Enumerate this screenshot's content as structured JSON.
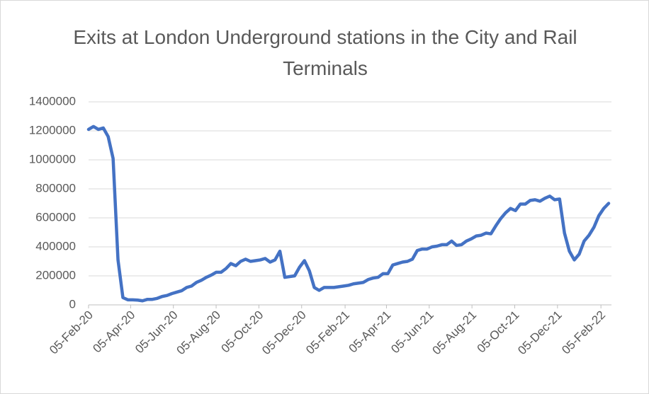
{
  "chart_data": {
    "type": "line",
    "title": "Exits at London Underground stations in the City and Rail Terminals",
    "x": [
      "2020-02-05",
      "2020-02-12",
      "2020-02-19",
      "2020-02-26",
      "2020-03-04",
      "2020-03-11",
      "2020-03-18",
      "2020-03-25",
      "2020-04-01",
      "2020-04-08",
      "2020-04-15",
      "2020-04-22",
      "2020-04-29",
      "2020-05-06",
      "2020-05-13",
      "2020-05-20",
      "2020-05-27",
      "2020-06-03",
      "2020-06-10",
      "2020-06-17",
      "2020-06-24",
      "2020-07-01",
      "2020-07-08",
      "2020-07-15",
      "2020-07-22",
      "2020-07-29",
      "2020-08-05",
      "2020-08-12",
      "2020-08-19",
      "2020-08-26",
      "2020-09-02",
      "2020-09-09",
      "2020-09-16",
      "2020-09-23",
      "2020-09-30",
      "2020-10-07",
      "2020-10-14",
      "2020-10-21",
      "2020-10-28",
      "2020-11-04",
      "2020-11-11",
      "2020-11-18",
      "2020-11-25",
      "2020-12-02",
      "2020-12-09",
      "2020-12-16",
      "2020-12-23",
      "2020-12-30",
      "2021-01-06",
      "2021-01-13",
      "2021-01-20",
      "2021-01-27",
      "2021-02-03",
      "2021-02-10",
      "2021-02-17",
      "2021-02-24",
      "2021-03-03",
      "2021-03-10",
      "2021-03-17",
      "2021-03-24",
      "2021-03-31",
      "2021-04-07",
      "2021-04-14",
      "2021-04-21",
      "2021-04-28",
      "2021-05-05",
      "2021-05-12",
      "2021-05-19",
      "2021-05-26",
      "2021-06-02",
      "2021-06-09",
      "2021-06-16",
      "2021-06-23",
      "2021-06-30",
      "2021-07-07",
      "2021-07-14",
      "2021-07-21",
      "2021-07-28",
      "2021-08-04",
      "2021-08-11",
      "2021-08-18",
      "2021-08-25",
      "2021-09-01",
      "2021-09-08",
      "2021-09-15",
      "2021-09-22",
      "2021-09-29",
      "2021-10-06",
      "2021-10-13",
      "2021-10-20",
      "2021-10-27",
      "2021-11-03",
      "2021-11-10",
      "2021-11-17",
      "2021-11-24",
      "2021-12-01",
      "2021-12-08",
      "2021-12-15",
      "2021-12-22",
      "2021-12-29",
      "2022-01-05",
      "2022-01-12",
      "2022-01-19",
      "2022-01-26",
      "2022-02-02",
      "2022-02-09",
      "2022-02-16"
    ],
    "series": [
      {
        "color": "#4472c4",
        "values": [
          1210000,
          1230000,
          1210000,
          1220000,
          1160000,
          1010000,
          310000,
          50000,
          35000,
          35000,
          33000,
          28000,
          38000,
          38000,
          45000,
          58000,
          65000,
          78000,
          88000,
          98000,
          120000,
          130000,
          155000,
          170000,
          190000,
          205000,
          225000,
          225000,
          250000,
          285000,
          270000,
          300000,
          315000,
          300000,
          305000,
          310000,
          320000,
          295000,
          310000,
          370000,
          190000,
          195000,
          200000,
          260000,
          305000,
          235000,
          120000,
          100000,
          120000,
          120000,
          120000,
          125000,
          130000,
          135000,
          145000,
          150000,
          155000,
          175000,
          185000,
          190000,
          215000,
          215000,
          275000,
          285000,
          295000,
          300000,
          315000,
          375000,
          385000,
          385000,
          400000,
          405000,
          415000,
          415000,
          440000,
          410000,
          415000,
          440000,
          455000,
          475000,
          480000,
          495000,
          490000,
          545000,
          595000,
          635000,
          665000,
          650000,
          695000,
          695000,
          720000,
          725000,
          715000,
          735000,
          750000,
          725000,
          730000,
          495000,
          370000,
          310000,
          350000,
          440000,
          480000,
          535000,
          615000,
          665000,
          700000
        ]
      }
    ],
    "xlim": [
      "2020-02-05",
      "2022-02-20"
    ],
    "xticks": [
      {
        "value": "2020-02-05",
        "label": "05-Feb-20"
      },
      {
        "value": "2020-04-05",
        "label": "05-Apr-20"
      },
      {
        "value": "2020-06-05",
        "label": "05-Jun-20"
      },
      {
        "value": "2020-08-05",
        "label": "05-Aug-20"
      },
      {
        "value": "2020-10-05",
        "label": "05-Oct-20"
      },
      {
        "value": "2020-12-05",
        "label": "05-Dec-20"
      },
      {
        "value": "2021-02-05",
        "label": "05-Feb-21"
      },
      {
        "value": "2021-04-05",
        "label": "05-Apr-21"
      },
      {
        "value": "2021-06-05",
        "label": "05-Jun-21"
      },
      {
        "value": "2021-08-05",
        "label": "05-Aug-21"
      },
      {
        "value": "2021-10-05",
        "label": "05-Oct-21"
      },
      {
        "value": "2021-12-05",
        "label": "05-Dec-21"
      },
      {
        "value": "2022-02-05",
        "label": "05-Feb-22"
      }
    ],
    "ylim": [
      0,
      1400000
    ],
    "yticks": [
      0,
      200000,
      400000,
      600000,
      800000,
      1000000,
      1200000,
      1400000
    ],
    "grid": true
  }
}
